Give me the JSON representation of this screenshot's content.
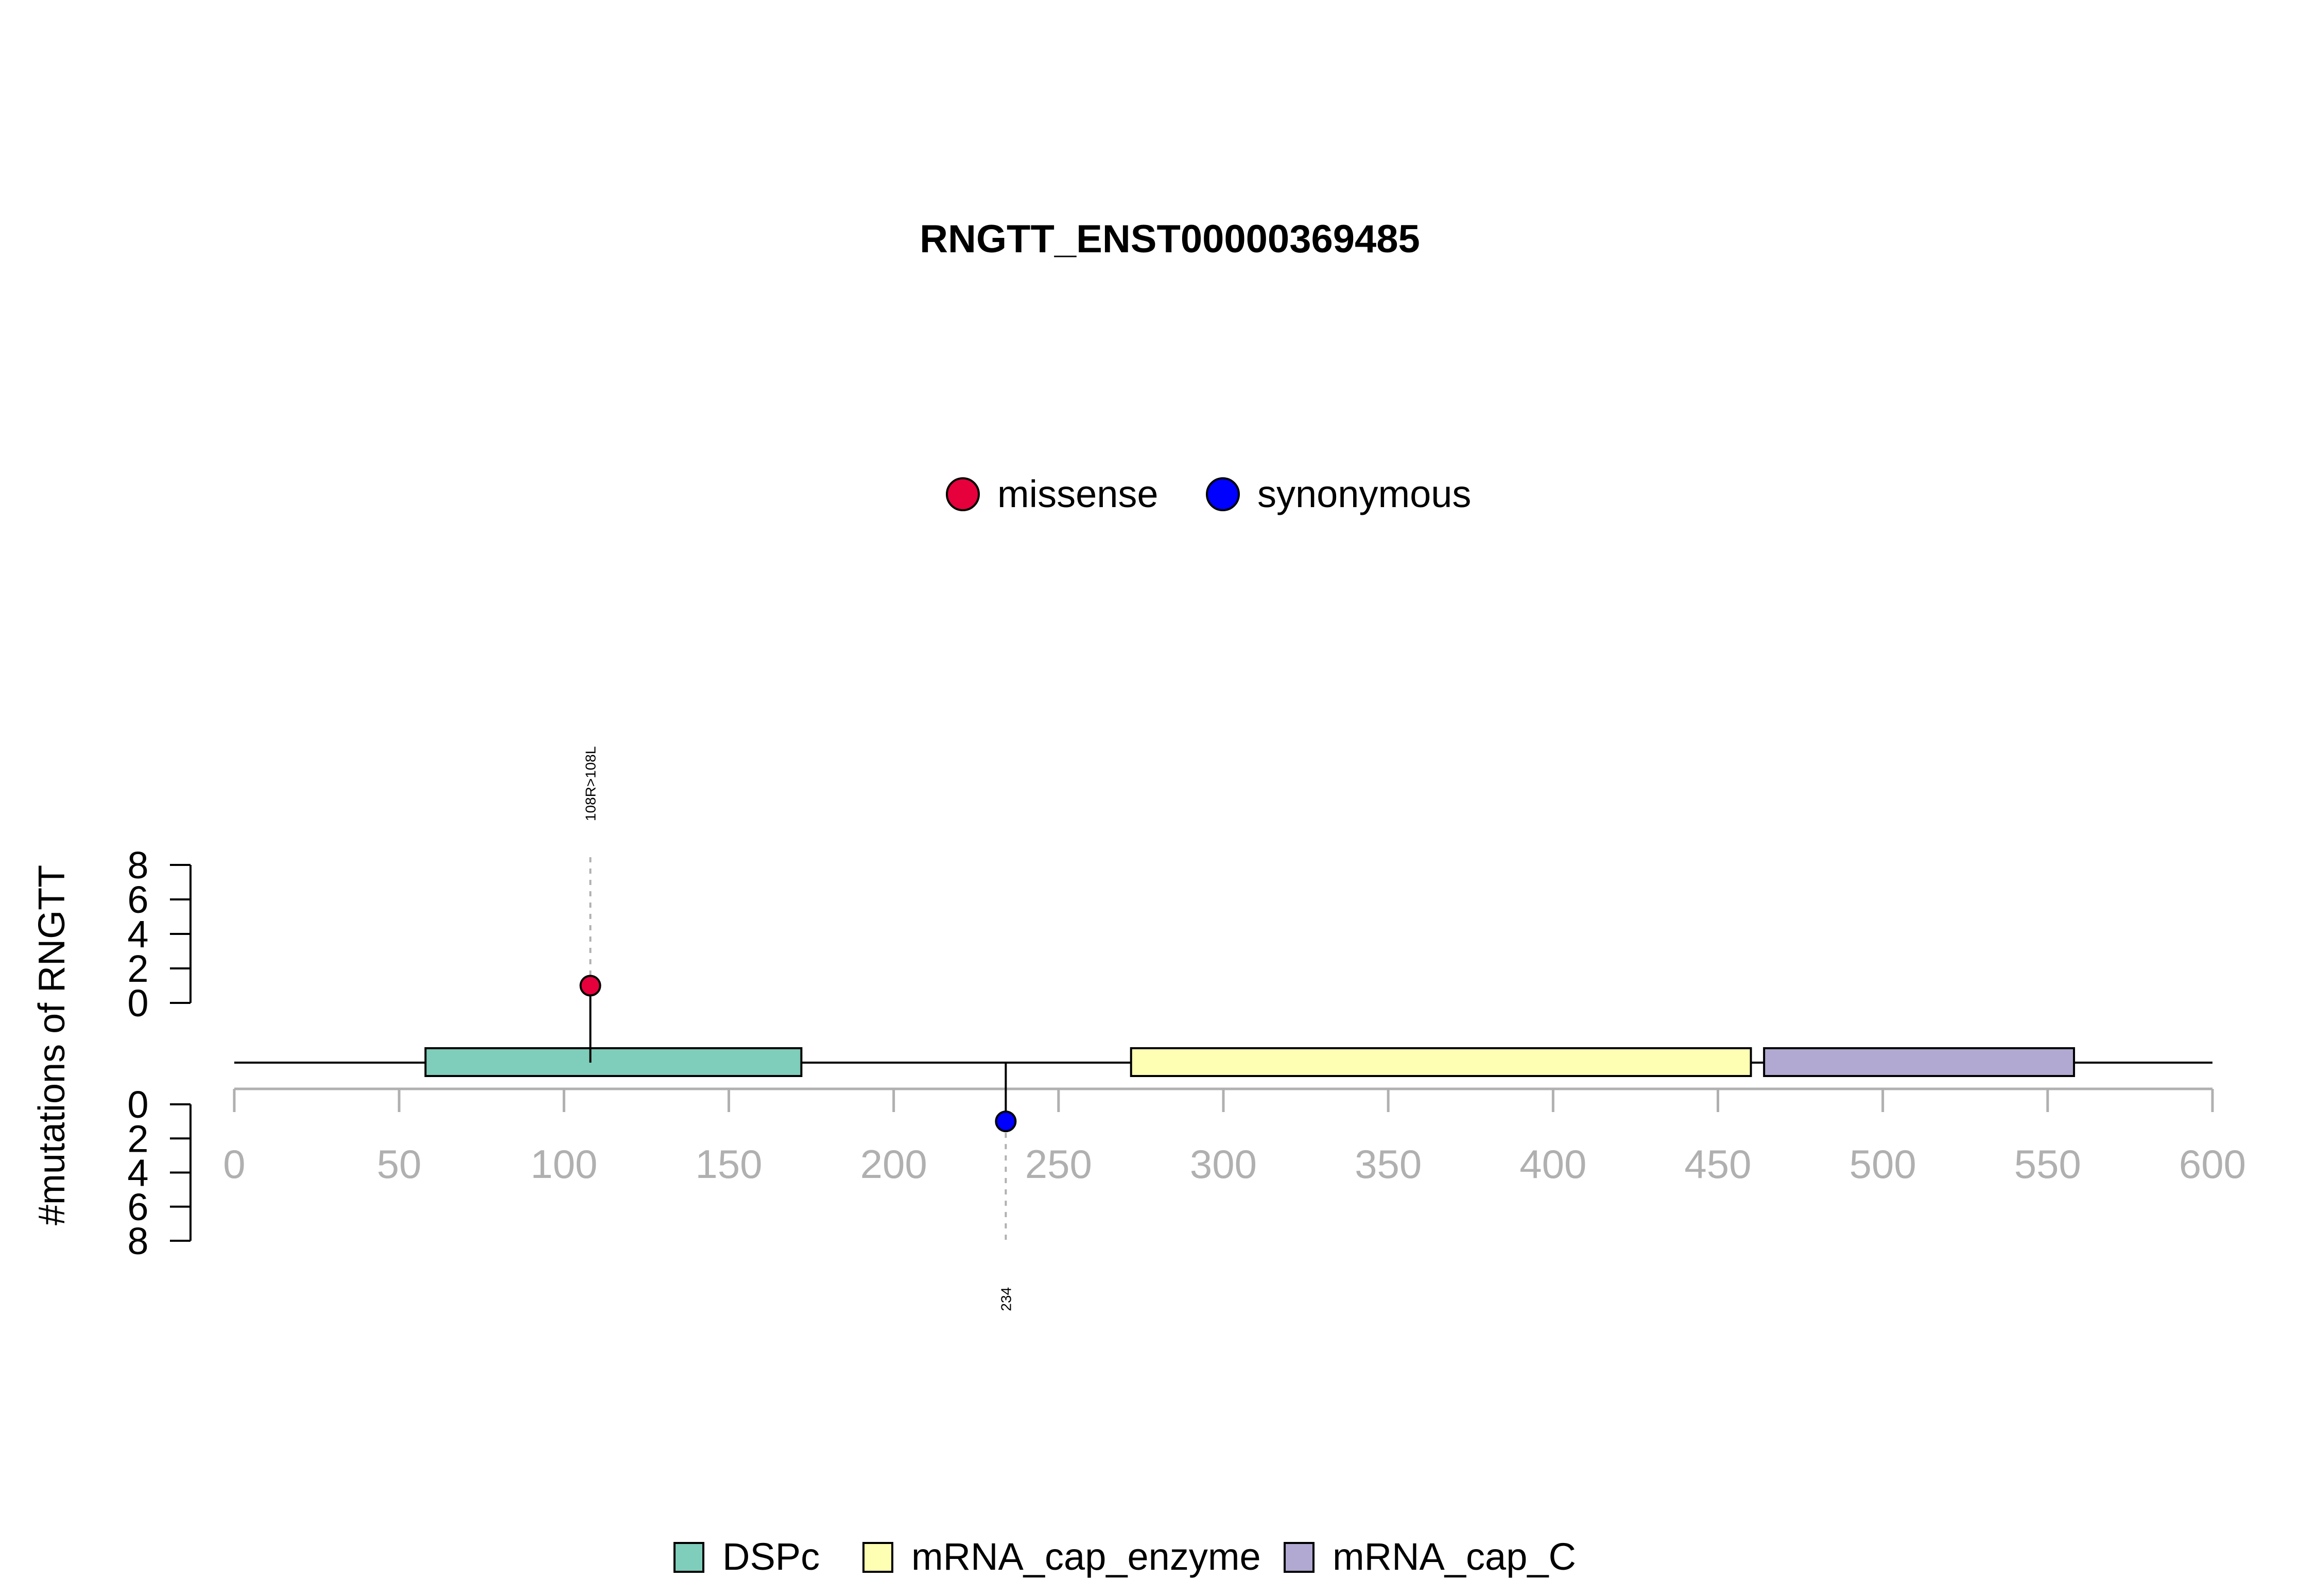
{
  "chart_data": {
    "type": "lollipop",
    "title": "RNGTT_ENST00000369485",
    "ylabel": "#mutations of RNGTT",
    "xlabel": "",
    "xlim": [
      0,
      600
    ],
    "x_ticks": [
      0,
      50,
      100,
      150,
      200,
      250,
      300,
      350,
      400,
      450,
      500,
      550,
      600
    ],
    "y_ticks": [
      0,
      2,
      4,
      6,
      8
    ],
    "y_tick_labels": [
      "0",
      "2",
      "4",
      "6",
      "8"
    ],
    "ylim": [
      0,
      8
    ],
    "mutation_legend": [
      {
        "name": "missense",
        "color": "#e6003c"
      },
      {
        "name": "synonymous",
        "color": "#0000ff"
      }
    ],
    "domains": [
      {
        "name": "DSPc",
        "start": 58,
        "end": 172,
        "color": "#7fcdbb"
      },
      {
        "name": "mRNA_cap_enzyme",
        "start": 272,
        "end": 460,
        "color": "#ffffb3"
      },
      {
        "name": "mRNA_cap_C",
        "start": 464,
        "end": 558,
        "color": "#b1a9d1"
      }
    ],
    "protein_length": 600,
    "mutations": [
      {
        "position": 108,
        "count": 1,
        "type": "missense",
        "side": "top",
        "label": "108R>108L",
        "color": "#e6003c"
      },
      {
        "position": 234,
        "count": 1,
        "type": "synonymous",
        "side": "bottom",
        "label": "234",
        "color": "#0000ff"
      }
    ]
  }
}
